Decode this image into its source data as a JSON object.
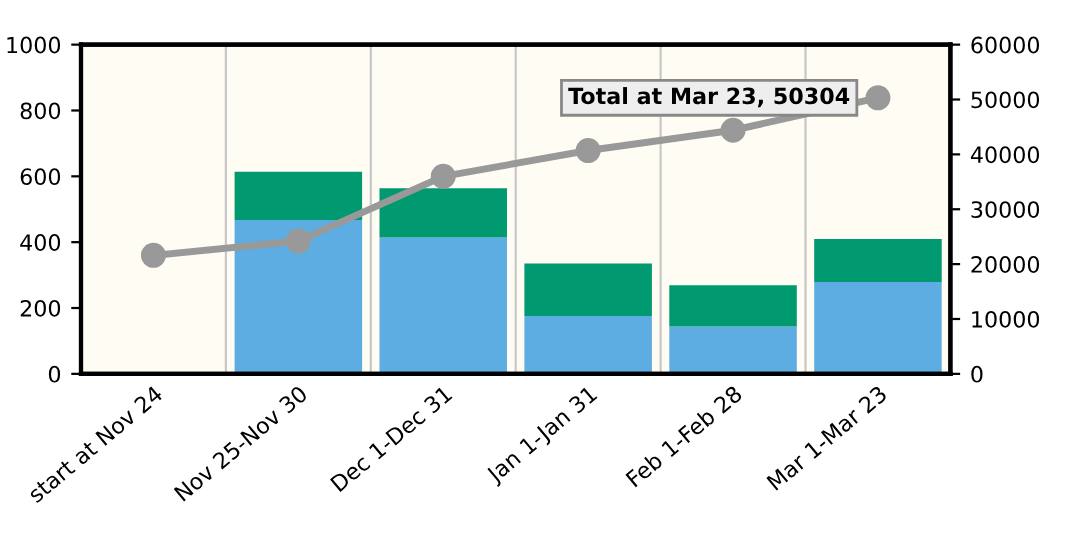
{
  "chart_data": {
    "type": "bar",
    "stacked": true,
    "categories": [
      "start at Nov 24",
      "Nov 25-Nov 30",
      "Dec 1-Dec 31",
      "Jan 1-Jan 31",
      "Feb 1-Feb 28",
      "Mar 1-Mar 23"
    ],
    "series": [
      {
        "color": "#5dade2",
        "values": [
          null,
          467,
          414,
          176,
          144,
          279
        ]
      },
      {
        "color": "#009970",
        "values": [
          null,
          147,
          150,
          159,
          125,
          131
        ]
      },
      {
        "type": "line",
        "axis": "y2",
        "color": "#999999",
        "values": [
          21600,
          24200,
          36000,
          40700,
          44400,
          50304
        ]
      }
    ],
    "ylim": [
      0,
      1000
    ],
    "yticks": [
      0,
      200,
      400,
      600,
      800,
      1000
    ],
    "y2lim": [
      0,
      60000
    ],
    "y2ticks": [
      0,
      10000,
      20000,
      30000,
      40000,
      50000,
      60000
    ],
    "grid": "x",
    "marker": "circle",
    "line_style": "solid",
    "legend": false,
    "annotations": [
      "Total at Mar 23, 50304"
    ]
  }
}
